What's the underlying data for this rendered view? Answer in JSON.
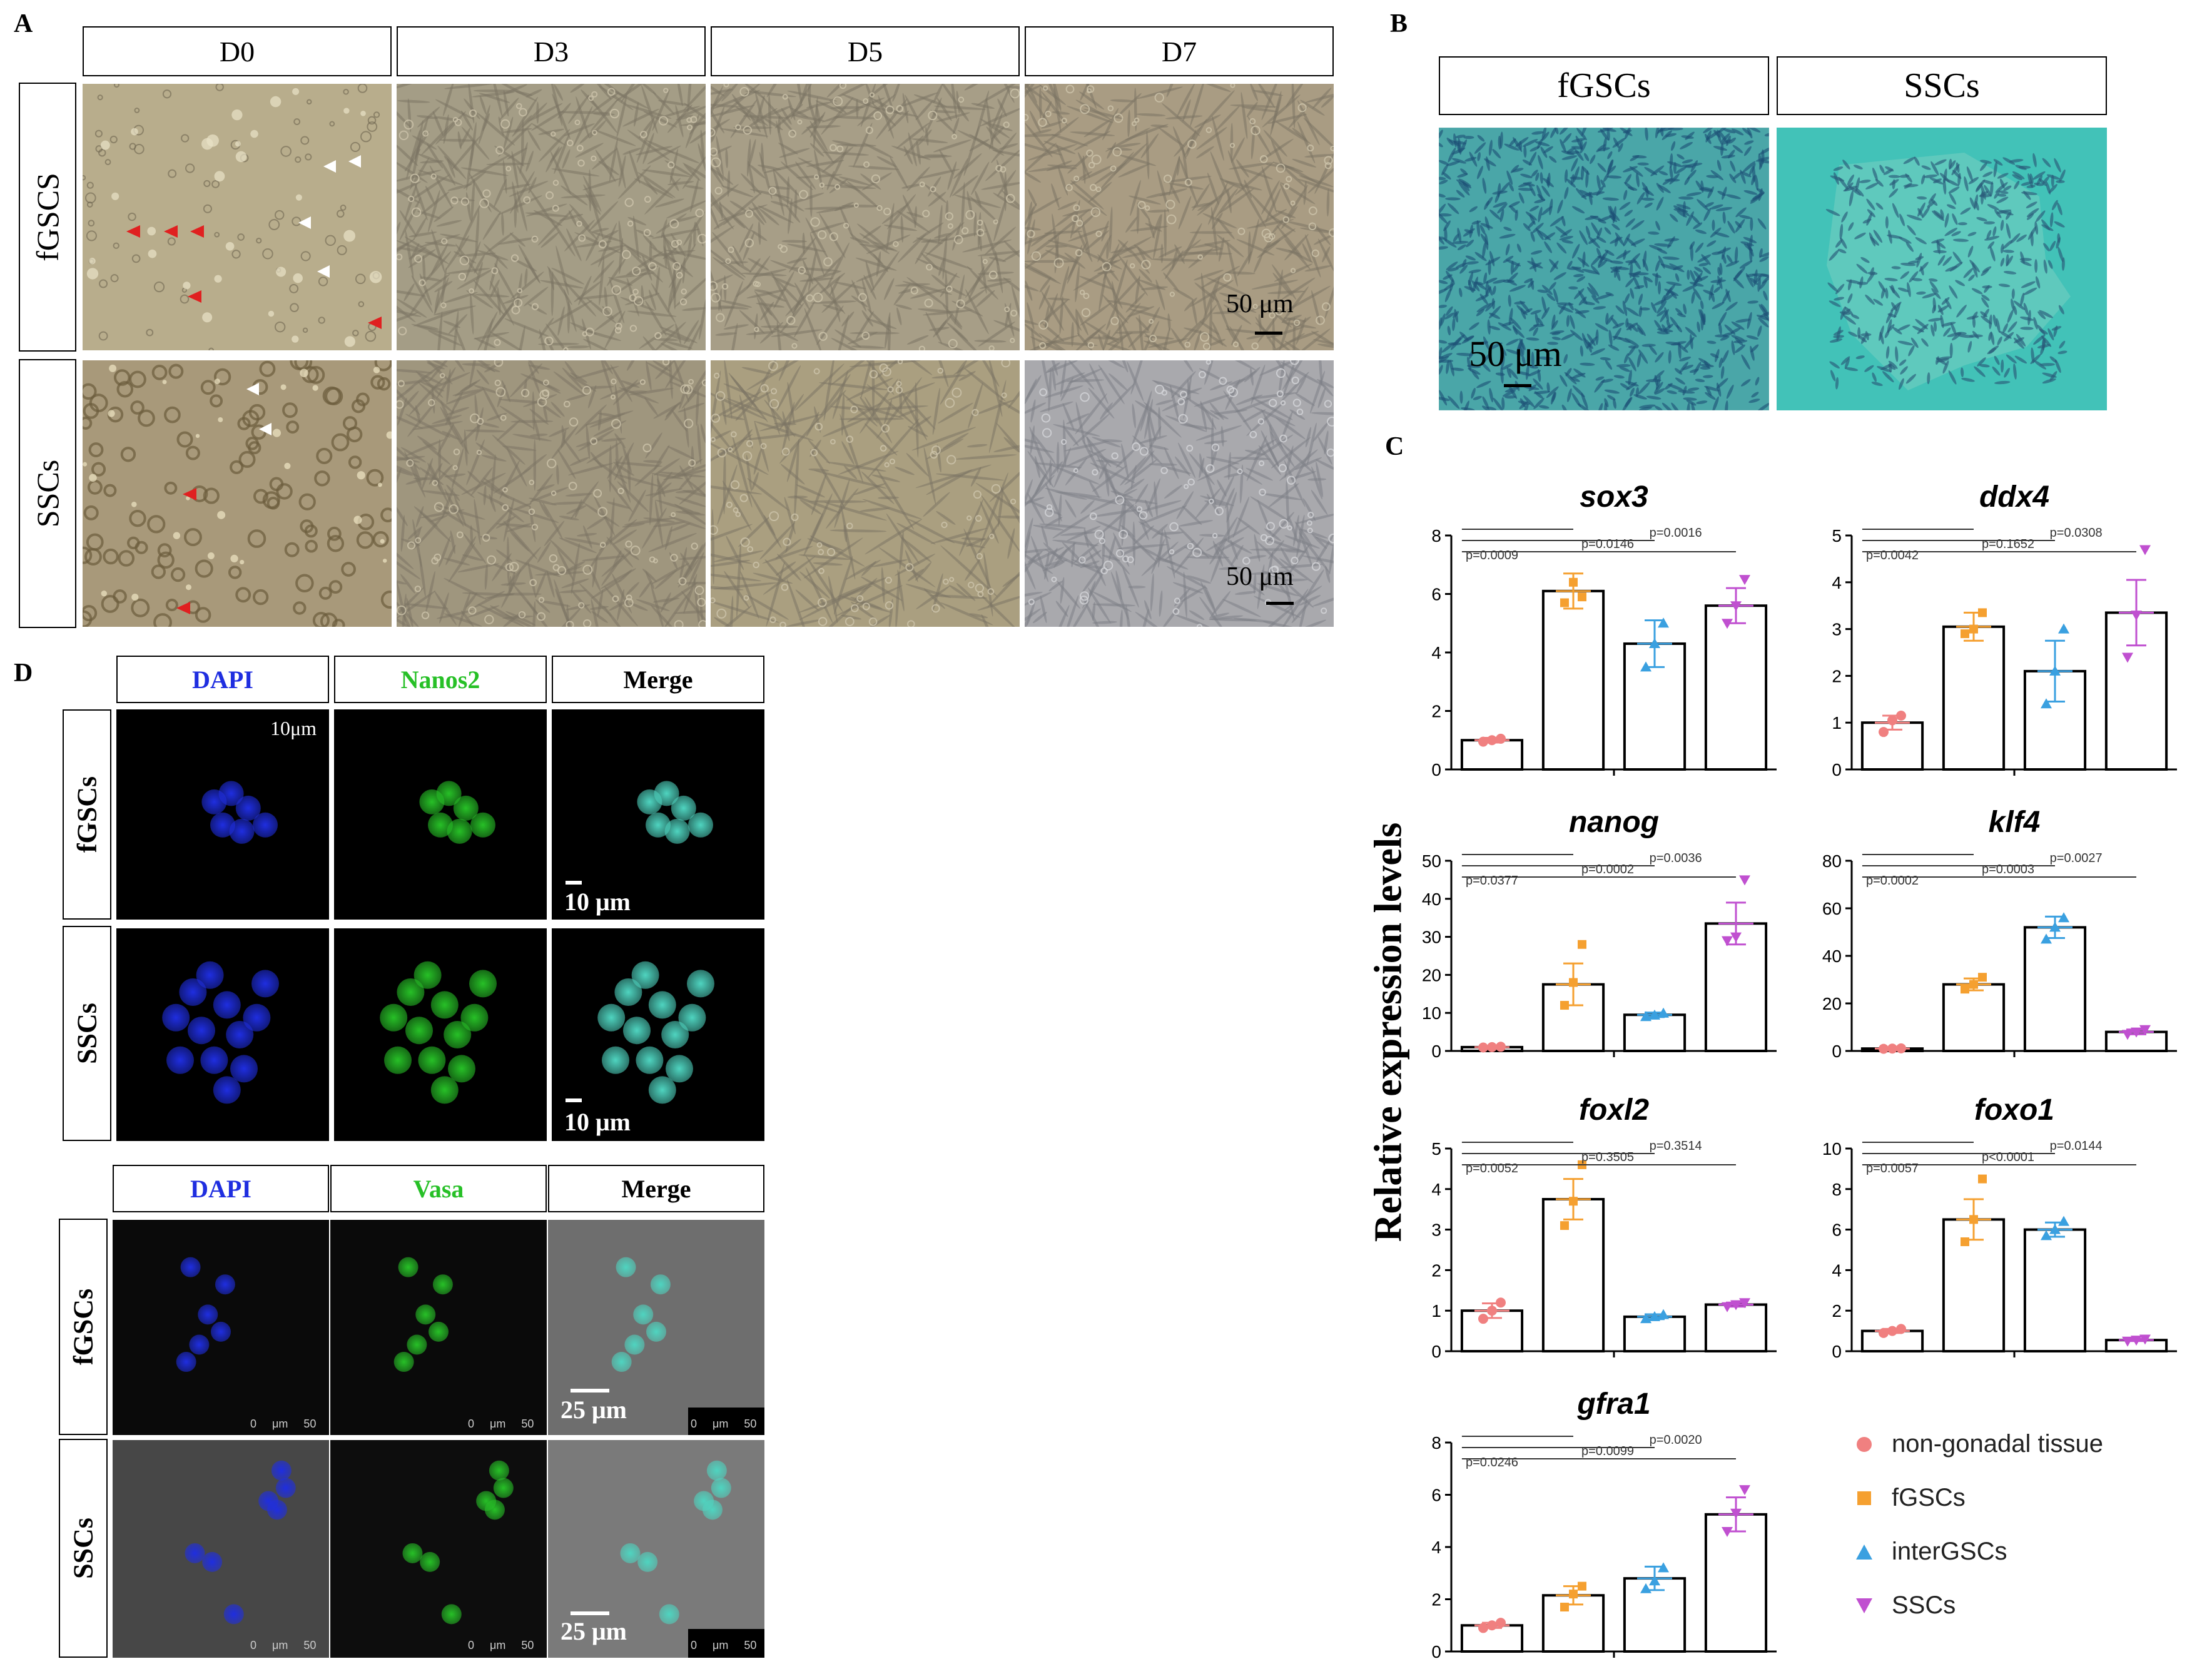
{
  "panel_labels": {
    "a": "A",
    "b": "B",
    "c": "C",
    "d": "D"
  },
  "panel_a": {
    "days": [
      "D0",
      "D3",
      "D5",
      "D7"
    ],
    "rows": [
      "fGSCS",
      "SSCs"
    ],
    "scale_text": "50 μm"
  },
  "panel_b": {
    "columns": [
      "fGSCs",
      "SSCs"
    ],
    "scale_text": "50 μm"
  },
  "panel_c": {
    "ylabel": "Relative expression levels",
    "legend": [
      {
        "name": "non-gonadal tissue",
        "color": "#f08080",
        "marker": "circle"
      },
      {
        "name": "fGSCs",
        "color": "#f5a030",
        "marker": "square"
      },
      {
        "name": "interGSCs",
        "color": "#3aa0e0",
        "marker": "triangle-up"
      },
      {
        "name": "SSCs",
        "color": "#c050d0",
        "marker": "triangle-down"
      }
    ]
  },
  "chart_data": [
    {
      "type": "bar",
      "title": "sox3",
      "categories": [
        "non-gonadal tissue",
        "fGSCs",
        "interGSCs",
        "SSCs"
      ],
      "values": [
        1.0,
        6.1,
        4.3,
        5.6
      ],
      "errors": [
        0.08,
        0.6,
        0.8,
        0.6
      ],
      "points": [
        [
          0.95,
          1.0,
          1.05
        ],
        [
          5.7,
          6.4,
          5.9
        ],
        [
          3.5,
          4.3,
          5.0
        ],
        [
          5.0,
          5.6,
          6.5
        ]
      ],
      "ylim": [
        0,
        8
      ],
      "yticks": [
        0,
        2,
        4,
        6,
        8
      ],
      "pvalues": [
        "p=0.0009",
        "p=0.0146",
        "p=0.0016"
      ]
    },
    {
      "type": "bar",
      "title": "ddx4",
      "categories": [
        "non-gonadal tissue",
        "fGSCs",
        "interGSCs",
        "SSCs"
      ],
      "values": [
        1.0,
        3.05,
        2.1,
        3.35
      ],
      "errors": [
        0.15,
        0.3,
        0.65,
        0.7
      ],
      "points": [
        [
          0.8,
          1.05,
          1.15
        ],
        [
          2.9,
          3.0,
          3.35
        ],
        [
          1.4,
          2.1,
          3.0
        ],
        [
          2.4,
          3.3,
          4.7
        ]
      ],
      "ylim": [
        0,
        5
      ],
      "yticks": [
        0,
        1,
        2,
        3,
        4,
        5
      ],
      "pvalues": [
        "p=0.0042",
        "p=0.1652",
        "p=0.0308"
      ]
    },
    {
      "type": "bar",
      "title": "nanog",
      "categories": [
        "non-gonadal tissue",
        "fGSCs",
        "interGSCs",
        "SSCs"
      ],
      "values": [
        1.0,
        17.5,
        9.5,
        33.5
      ],
      "errors": [
        0.2,
        5.5,
        0.6,
        5.5
      ],
      "points": [
        [
          0.9,
          1.0,
          1.1
        ],
        [
          12,
          18,
          28
        ],
        [
          9.0,
          9.4,
          9.9
        ],
        [
          29,
          30,
          45
        ]
      ],
      "ylim": [
        0,
        50
      ],
      "yticks": [
        0,
        10,
        20,
        30,
        40,
        50
      ],
      "pvalues": [
        "p=0.0377",
        "p=0.0002",
        "p=0.0036"
      ]
    },
    {
      "type": "bar",
      "title": "klf4",
      "categories": [
        "non-gonadal tissue",
        "fGSCs",
        "interGSCs",
        "SSCs"
      ],
      "values": [
        1.0,
        28.0,
        52.0,
        8.0
      ],
      "errors": [
        0.1,
        2.5,
        4.5,
        1.0
      ],
      "points": [
        [
          0.9,
          1.0,
          1.1
        ],
        [
          26,
          28,
          31
        ],
        [
          47,
          52,
          56
        ],
        [
          7,
          8,
          9
        ]
      ],
      "ylim": [
        0,
        80
      ],
      "yticks": [
        0,
        20,
        40,
        60,
        80
      ],
      "pvalues": [
        "p=0.0002",
        "p=0.0003",
        "p=0.0027"
      ]
    },
    {
      "type": "bar",
      "title": "foxl2",
      "categories": [
        "non-gonadal tissue",
        "fGSCs",
        "interGSCs",
        "SSCs"
      ],
      "values": [
        1.0,
        3.75,
        0.85,
        1.15
      ],
      "errors": [
        0.18,
        0.5,
        0.06,
        0.05
      ],
      "points": [
        [
          0.8,
          1.0,
          1.2
        ],
        [
          3.1,
          3.7,
          4.6
        ],
        [
          0.8,
          0.85,
          0.9
        ],
        [
          1.1,
          1.15,
          1.2
        ]
      ],
      "ylim": [
        0,
        5
      ],
      "yticks": [
        0,
        1,
        2,
        3,
        4,
        5
      ],
      "pvalues": [
        "p=0.0052",
        "p=0.3505",
        "p=0.3514"
      ]
    },
    {
      "type": "bar",
      "title": "foxo1",
      "categories": [
        "non-gonadal tissue",
        "fGSCs",
        "interGSCs",
        "SSCs"
      ],
      "values": [
        1.0,
        6.5,
        6.0,
        0.55
      ],
      "errors": [
        0.1,
        1.0,
        0.35,
        0.05
      ],
      "points": [
        [
          0.9,
          1.0,
          1.1
        ],
        [
          5.4,
          6.5,
          8.5
        ],
        [
          5.7,
          6.0,
          6.4
        ],
        [
          0.5,
          0.55,
          0.6
        ]
      ],
      "ylim": [
        0,
        10
      ],
      "yticks": [
        0,
        2,
        4,
        6,
        8,
        10
      ],
      "pvalues": [
        "p=0.0057",
        "p<0.0001",
        "p=0.0144"
      ]
    },
    {
      "type": "bar",
      "title": "gfra1",
      "categories": [
        "non-gonadal tissue",
        "fGSCs",
        "interGSCs",
        "SSCs"
      ],
      "values": [
        1.0,
        2.15,
        2.8,
        5.25
      ],
      "errors": [
        0.1,
        0.35,
        0.45,
        0.65
      ],
      "points": [
        [
          0.9,
          1.0,
          1.1
        ],
        [
          1.7,
          2.2,
          2.5
        ],
        [
          2.4,
          2.7,
          3.2
        ],
        [
          4.6,
          5.3,
          6.2
        ]
      ],
      "ylim": [
        0,
        8
      ],
      "yticks": [
        0,
        2,
        4,
        6,
        8
      ],
      "pvalues": [
        "p=0.0246",
        "p=0.0099",
        "p=0.0020"
      ]
    }
  ],
  "panel_d": {
    "top": {
      "columns": [
        "DAPI",
        "Nanos2",
        "Merge"
      ],
      "rows": [
        "fGSCs",
        "SSCs"
      ],
      "inset": "10μm",
      "scale_text": "10 μm"
    },
    "bottom": {
      "columns": [
        "DAPI",
        "Vasa",
        "Merge"
      ],
      "rows": [
        "fGSCs",
        "SSCs"
      ],
      "scale_text": "25 μm",
      "micro_text": "0     μm     50"
    },
    "colors": {
      "dapi": "#1f2ee0",
      "green": "#27c027",
      "merge": "#4fd4c0"
    }
  }
}
